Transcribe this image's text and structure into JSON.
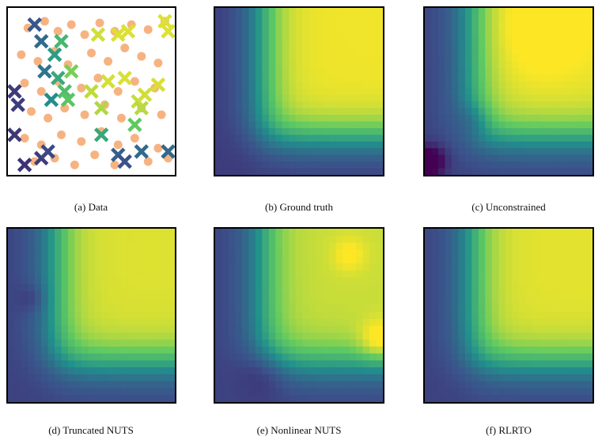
{
  "figure": {
    "captions": {
      "a": "(a) Data",
      "b": "(b) Ground truth",
      "c": "(c) Unconstrained",
      "d": "(d) Truncated NUTS",
      "e": "(e) Nonlinear NUTS",
      "f": "(f) RLRTO"
    }
  },
  "colors": {
    "viridis_dark": "#440154",
    "viridis_blue": "#3b528b",
    "viridis_teal": "#21918c",
    "viridis_green": "#5ec962",
    "viridis_yellow": "#fde725",
    "dot_orange": "#f5a66b"
  }
}
